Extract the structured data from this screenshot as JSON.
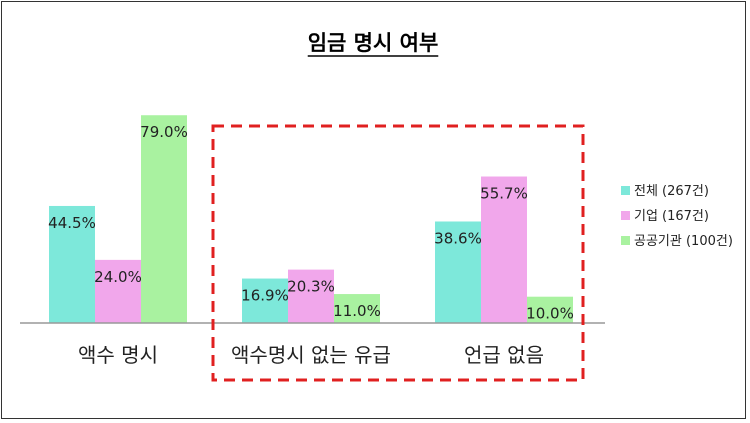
{
  "chart_data": {
    "type": "bar",
    "title": "임금 명시 여부",
    "categories": [
      "액수 명시",
      "액수명시 없는 유급",
      "언급 없음"
    ],
    "series": [
      {
        "name": "전체 (267건)",
        "color": "#7de8da",
        "values": [
          44.5,
          16.9,
          38.6
        ],
        "labels": [
          "44.5%",
          "16.9%",
          "38.6%"
        ]
      },
      {
        "name": "기업 (167건)",
        "color": "#f1a7eb",
        "values": [
          24.0,
          20.3,
          55.7
        ],
        "labels": [
          "24.0%",
          "20.3%",
          "55.7%"
        ]
      },
      {
        "name": "공공기관 (100건)",
        "color": "#a9f2a0",
        "values": [
          79.0,
          11.0,
          10.0
        ],
        "labels": [
          "79.0%",
          "11.0%",
          "10.0%"
        ]
      }
    ],
    "ylim": [
      0,
      100
    ],
    "grid": false,
    "legend": "right",
    "highlight_categories": [
      1,
      2
    ],
    "highlight_color": "#e02020"
  }
}
